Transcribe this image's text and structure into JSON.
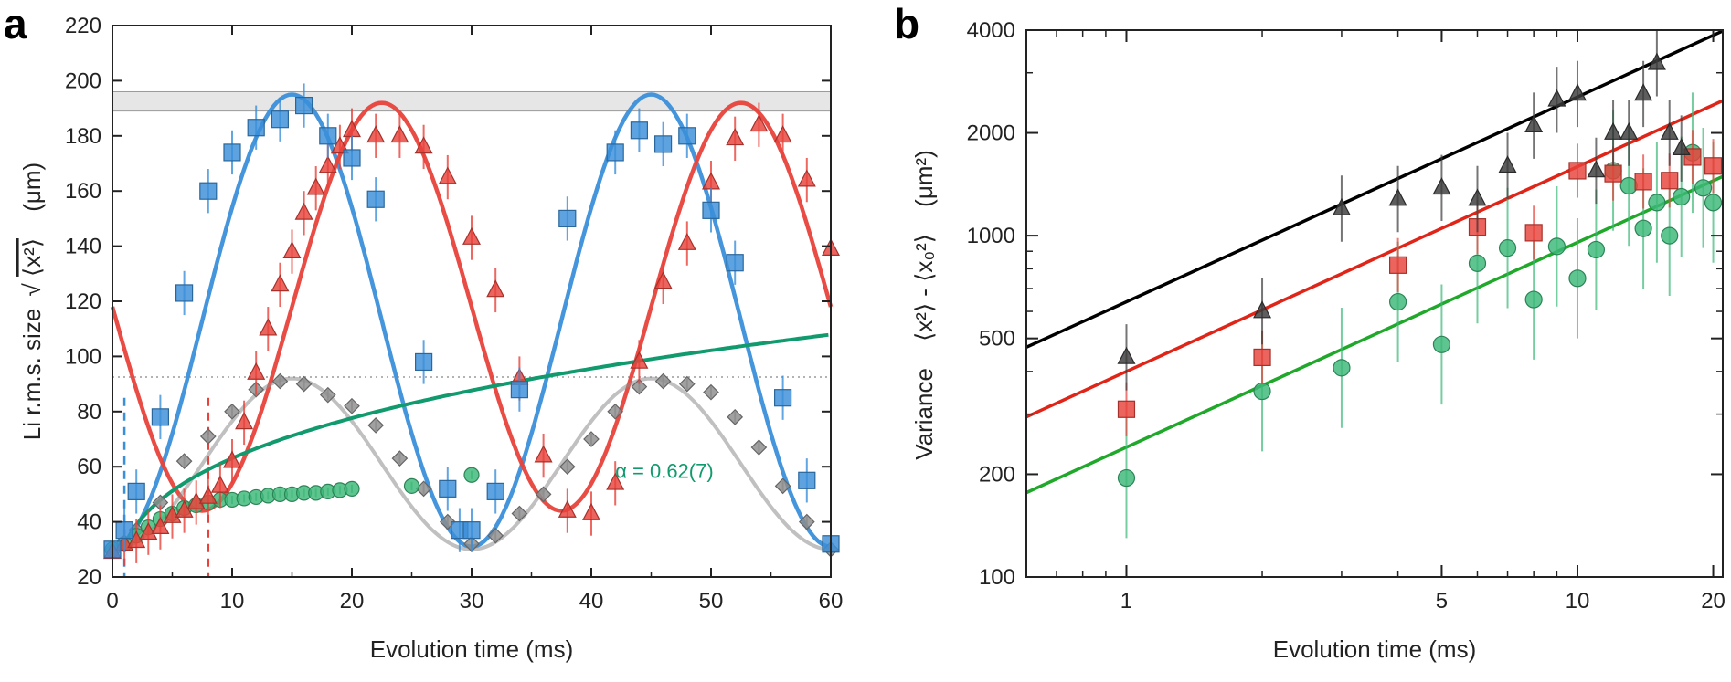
{
  "chart_data": [
    {
      "type": "scatter",
      "panel": "a",
      "xlabel": "Evolution time  (ms)",
      "ylabel_prefix": "Li  r.m.s.  size",
      "ylabel_sqrt": "√",
      "ylabel_expr": "⟨x²⟩",
      "ylabel_unit": "(μm)",
      "xlim": [
        0,
        60
      ],
      "ylim": [
        20,
        220
      ],
      "xticks": [
        0,
        10,
        20,
        30,
        40,
        50,
        60
      ],
      "yticks": [
        20,
        40,
        60,
        80,
        100,
        120,
        140,
        160,
        180,
        200,
        220
      ],
      "band": [
        189,
        196
      ],
      "dotted_line_y": 92.5,
      "vlines": [
        {
          "x": 1,
          "color": "#3a8fd9"
        },
        {
          "x": 8,
          "color": "#e8423a"
        }
      ],
      "annotation": {
        "text": "α = 0.62(7)",
        "x": 42,
        "y": 56,
        "color": "#119a6e"
      },
      "series": [
        {
          "name": "blue",
          "marker": "square",
          "color": "#3a8fd9",
          "x": [
            0,
            1,
            2,
            4,
            6,
            8,
            10,
            12,
            14,
            16,
            18,
            20,
            22,
            26,
            28,
            29,
            30,
            32,
            34,
            38,
            42,
            44,
            46,
            48,
            50,
            52,
            56,
            58,
            60
          ],
          "y": [
            30,
            37,
            51,
            78,
            123,
            160,
            174,
            183,
            186,
            191,
            180,
            172,
            157,
            98,
            52,
            37,
            37,
            51,
            88,
            150,
            174,
            182,
            177,
            180,
            153,
            134,
            85,
            55,
            32
          ],
          "fit": {
            "kind": "sine",
            "mean": 113,
            "amp": 82,
            "period": 30,
            "phase_x": 0
          }
        },
        {
          "name": "red",
          "marker": "triangle",
          "color": "#e8423a",
          "x": [
            0,
            1,
            2,
            3,
            4,
            5,
            6,
            7,
            8,
            9,
            10,
            11,
            12,
            13,
            14,
            15,
            16,
            17,
            18,
            19,
            20,
            22,
            24,
            26,
            28,
            30,
            32,
            34,
            36,
            38,
            40,
            42,
            44,
            46,
            48,
            50,
            52,
            54,
            56,
            58,
            60
          ],
          "y": [
            29,
            32,
            33,
            36,
            38,
            42,
            44,
            47,
            49,
            53,
            62,
            76,
            94,
            110,
            126,
            138,
            152,
            161,
            169,
            176,
            182,
            180,
            180,
            176,
            165,
            143,
            124,
            92,
            64,
            44,
            43,
            54,
            98,
            127,
            141,
            163,
            179,
            184,
            180,
            164,
            139
          ],
          "fit": {
            "kind": "sine",
            "mean": 118,
            "amp": 74,
            "period": 30,
            "phase_x": 7.5
          }
        },
        {
          "name": "grey",
          "marker": "diamond",
          "color": "#8c8c8c",
          "x": [
            0,
            2,
            4,
            6,
            8,
            10,
            12,
            14,
            16,
            18,
            20,
            22,
            24,
            26,
            28,
            30,
            32,
            34,
            36,
            38,
            40,
            42,
            44,
            46,
            48,
            50,
            52,
            54,
            56,
            58,
            60
          ],
          "y": [
            30,
            37,
            47,
            62,
            71,
            80,
            88,
            91,
            90,
            86,
            82,
            75,
            63,
            52,
            40,
            32,
            35,
            43,
            50,
            60,
            70,
            80,
            89,
            91,
            90,
            87,
            78,
            67,
            53,
            40,
            30
          ],
          "fit": {
            "kind": "sine",
            "mean": 61,
            "amp": 31,
            "period": 30,
            "phase_x": 0
          }
        },
        {
          "name": "green",
          "marker": "circle",
          "color": "#3cb878",
          "x": [
            0,
            1,
            2,
            3,
            4,
            5,
            6,
            7,
            8,
            9,
            10,
            11,
            12,
            13,
            14,
            15,
            16,
            17,
            18,
            19,
            20,
            25,
            30
          ],
          "y": [
            30,
            32,
            35,
            38,
            41,
            43,
            45,
            46,
            47,
            48,
            48,
            48.5,
            49,
            49.5,
            50,
            50,
            50.5,
            50.5,
            51,
            51.5,
            52,
            53,
            57
          ],
          "fit": {
            "kind": "power",
            "x0": 1,
            "y0": 31.6,
            "alpha": 0.3,
            "x_from": 0,
            "x_to": 60,
            "color": "#119a6e"
          }
        }
      ]
    },
    {
      "type": "scatter",
      "panel": "b",
      "scale": "log-log",
      "xlabel": "Evolution time  (ms)",
      "ylabel_prefix": "Variance",
      "ylabel_expr": "⟨x²⟩  -  ⟨x₀²⟩",
      "ylabel_unit": "(μm²)",
      "xlim": [
        0.6,
        21
      ],
      "ylim": [
        100,
        4000
      ],
      "xticks": [
        1,
        5,
        10,
        20
      ],
      "yticks": [
        100,
        200,
        500,
        1000,
        2000,
        4000
      ],
      "series": [
        {
          "name": "black",
          "marker": "triangle",
          "color": "#3a3a3a",
          "x": [
            1,
            2,
            3,
            4,
            5,
            6,
            7,
            8,
            9,
            10,
            11,
            12,
            13,
            14,
            15,
            16,
            17
          ],
          "y": [
            440,
            600,
            1200,
            1280,
            1380,
            1280,
            1600,
            2100,
            2500,
            2600,
            1550,
            2000,
            2000,
            2600,
            3200,
            2000,
            1800
          ],
          "fit": {
            "x0": 1,
            "y0": 640,
            "slope": 0.6
          }
        },
        {
          "name": "red",
          "marker": "square",
          "color": "#e8423a",
          "x": [
            1,
            2,
            4,
            6,
            8,
            10,
            12,
            14,
            16,
            18,
            20
          ],
          "y": [
            310,
            440,
            820,
            1060,
            1020,
            1550,
            1520,
            1440,
            1450,
            1700,
            1600
          ],
          "fit": {
            "x0": 1,
            "y0": 400,
            "slope": 0.6
          }
        },
        {
          "name": "green",
          "marker": "circle",
          "color": "#3cb878",
          "x": [
            1,
            2,
            3,
            4,
            5,
            6,
            7,
            8,
            9,
            10,
            11,
            12,
            13,
            14,
            15,
            16,
            17,
            18,
            19,
            20
          ],
          "y": [
            195,
            350,
            410,
            640,
            480,
            830,
            920,
            650,
            930,
            750,
            910,
            1550,
            1400,
            1050,
            1250,
            1000,
            1300,
            1750,
            1380,
            1250
          ],
          "fit": {
            "x0": 1,
            "y0": 240,
            "slope": 0.6
          }
        }
      ]
    }
  ]
}
